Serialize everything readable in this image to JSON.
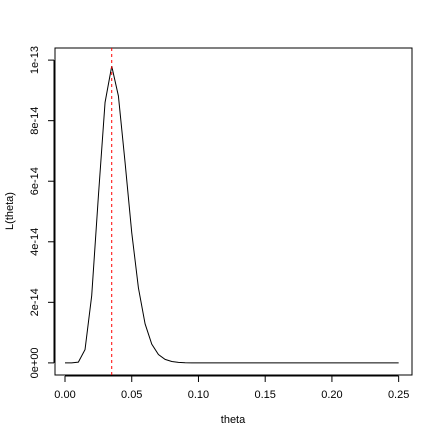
{
  "chart_data": {
    "type": "line",
    "x_label": "theta",
    "y_label": "L(theta)",
    "x": [
      0,
      0.005,
      0.01,
      0.015,
      0.02,
      0.025,
      0.03,
      0.035,
      0.04,
      0.045,
      0.05,
      0.055,
      0.06,
      0.065,
      0.07,
      0.075,
      0.08,
      0.085,
      0.09,
      0.095,
      0.1,
      0.12,
      0.15,
      0.2,
      0.25
    ],
    "values": [
      0,
      5e-19,
      2.4e-16,
      4.4e-15,
      2.22e-14,
      5.5e-14,
      8.6e-14,
      9.8e-14,
      8.82e-14,
      6.62e-14,
      4.3e-14,
      2.48e-14,
      1.29e-14,
      6.2e-15,
      2.76e-15,
      1.15e-15,
      4.5e-16,
      1.7e-16,
      6e-17,
      2e-17,
      6e-18,
      0,
      0,
      0,
      0
    ],
    "color": "#000000",
    "vline": 0.035,
    "vline_color": "#ff0000",
    "xlim": [
      -0.0075,
      0.26
    ],
    "ylim": [
      -4e-15,
      1.04e-13
    ],
    "xticks": [
      {
        "value": 0,
        "label": "0.00"
      },
      0.05,
      {
        "value": 0.1,
        "label": "0.10"
      },
      0.15,
      {
        "value": 0.2,
        "label": "0.20"
      },
      0.25
    ],
    "yticks": [
      {
        "value": 0,
        "label": "0e+00"
      },
      {
        "value": 2e-14,
        "label": "2e-14"
      },
      {
        "value": 4e-14,
        "label": "4e-14"
      },
      {
        "value": 6e-14,
        "label": "6e-14"
      },
      {
        "value": 8e-14,
        "label": "8e-14"
      },
      {
        "value": 1e-13,
        "label": "1e-13"
      }
    ]
  }
}
